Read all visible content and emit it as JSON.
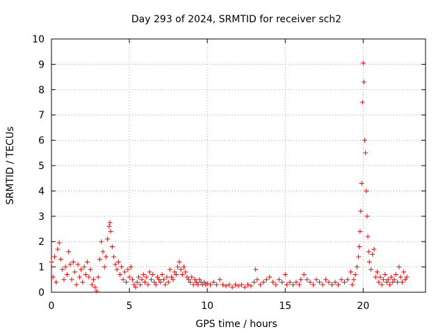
{
  "chart_data": {
    "type": "scatter",
    "title": "Day 293 of 2024, SRMTID for receiver sch2",
    "xlabel": "GPS time / hours",
    "ylabel": "SRMTID / TECUs",
    "xlim": [
      0,
      24
    ],
    "ylim": [
      0,
      10
    ],
    "x_ticks": [
      "0",
      "5",
      "10",
      "15",
      "20"
    ],
    "x_tick_values": [
      0,
      5,
      10,
      15,
      20
    ],
    "y_ticks": [
      "0",
      "1",
      "2",
      "3",
      "4",
      "5",
      "6",
      "7",
      "8",
      "9",
      "10"
    ],
    "y_tick_values": [
      0,
      1,
      2,
      3,
      4,
      5,
      6,
      7,
      8,
      9,
      10
    ],
    "grid": true,
    "marker": "+",
    "series_color": "#ff0000",
    "series": [
      {
        "name": "SRMTID",
        "points": [
          [
            0.0,
            1.2
          ],
          [
            0.1,
            0.6
          ],
          [
            0.2,
            1.4
          ],
          [
            0.3,
            0.4
          ],
          [
            0.4,
            1.7
          ],
          [
            0.5,
            1.95
          ],
          [
            0.6,
            1.3
          ],
          [
            0.7,
            0.9
          ],
          [
            0.8,
            0.5
          ],
          [
            0.9,
            1.0
          ],
          [
            1.0,
            0.7
          ],
          [
            1.1,
            1.6
          ],
          [
            1.2,
            1.1
          ],
          [
            1.3,
            0.5
          ],
          [
            1.4,
            1.2
          ],
          [
            1.5,
            0.8
          ],
          [
            1.6,
            0.3
          ],
          [
            1.7,
            1.1
          ],
          [
            1.8,
            0.6
          ],
          [
            1.9,
            0.9
          ],
          [
            2.0,
            0.4
          ],
          [
            2.1,
            1.0
          ],
          [
            2.2,
            0.7
          ],
          [
            2.3,
            1.2
          ],
          [
            2.4,
            0.6
          ],
          [
            2.5,
            0.9
          ],
          [
            2.6,
            0.3
          ],
          [
            2.7,
            0.5
          ],
          [
            2.8,
            0.2
          ],
          [
            2.9,
            0.05
          ],
          [
            3.0,
            0.6
          ],
          [
            3.1,
            1.3
          ],
          [
            3.2,
            2.0
          ],
          [
            3.3,
            1.6
          ],
          [
            3.4,
            1.0
          ],
          [
            3.5,
            1.4
          ],
          [
            3.6,
            2.1
          ],
          [
            3.7,
            2.6
          ],
          [
            3.75,
            2.75
          ],
          [
            3.8,
            2.4
          ],
          [
            3.9,
            1.8
          ],
          [
            4.0,
            1.4
          ],
          [
            4.1,
            1.1
          ],
          [
            4.2,
            0.9
          ],
          [
            4.3,
            1.2
          ],
          [
            4.4,
            0.7
          ],
          [
            4.5,
            1.0
          ],
          [
            4.6,
            0.5
          ],
          [
            4.7,
            0.8
          ],
          [
            4.8,
            0.4
          ],
          [
            4.9,
            0.9
          ],
          [
            5.0,
            0.6
          ],
          [
            5.1,
            1.0
          ],
          [
            5.2,
            0.5
          ],
          [
            5.3,
            0.3
          ],
          [
            5.4,
            0.2
          ],
          [
            5.5,
            0.4
          ],
          [
            5.6,
            0.6
          ],
          [
            5.7,
            0.3
          ],
          [
            5.8,
            0.5
          ],
          [
            5.9,
            0.7
          ],
          [
            6.0,
            0.4
          ],
          [
            6.1,
            0.6
          ],
          [
            6.2,
            0.3
          ],
          [
            6.3,
            0.8
          ],
          [
            6.4,
            0.5
          ],
          [
            6.5,
            0.7
          ],
          [
            6.6,
            0.4
          ],
          [
            6.7,
            0.3
          ],
          [
            6.8,
            0.6
          ],
          [
            6.9,
            0.5
          ],
          [
            7.0,
            0.4
          ],
          [
            7.1,
            0.7
          ],
          [
            7.2,
            0.5
          ],
          [
            7.3,
            0.3
          ],
          [
            7.4,
            0.6
          ],
          [
            7.5,
            0.4
          ],
          [
            7.6,
            0.9
          ],
          [
            7.7,
            0.6
          ],
          [
            7.8,
            0.5
          ],
          [
            7.9,
            0.8
          ],
          [
            8.0,
            0.7
          ],
          [
            8.1,
            1.0
          ],
          [
            8.2,
            1.2
          ],
          [
            8.3,
            0.9
          ],
          [
            8.4,
            0.7
          ],
          [
            8.5,
            1.0
          ],
          [
            8.6,
            0.8
          ],
          [
            8.7,
            0.6
          ],
          [
            8.8,
            0.5
          ],
          [
            8.9,
            0.4
          ],
          [
            9.0,
            0.6
          ],
          [
            9.1,
            0.3
          ],
          [
            9.2,
            0.5
          ],
          [
            9.3,
            0.4
          ],
          [
            9.4,
            0.3
          ],
          [
            9.5,
            0.5
          ],
          [
            9.6,
            0.4
          ],
          [
            9.7,
            0.3
          ],
          [
            9.8,
            0.4
          ],
          [
            9.9,
            0.3
          ],
          [
            10.0,
            0.35
          ],
          [
            10.2,
            0.3
          ],
          [
            10.4,
            0.4
          ],
          [
            10.6,
            0.3
          ],
          [
            10.8,
            0.5
          ],
          [
            11.0,
            0.3
          ],
          [
            11.2,
            0.25
          ],
          [
            11.4,
            0.3
          ],
          [
            11.6,
            0.2
          ],
          [
            11.8,
            0.3
          ],
          [
            12.0,
            0.25
          ],
          [
            12.2,
            0.3
          ],
          [
            12.4,
            0.2
          ],
          [
            12.6,
            0.3
          ],
          [
            12.8,
            0.25
          ],
          [
            13.0,
            0.4
          ],
          [
            13.1,
            0.9
          ],
          [
            13.2,
            0.5
          ],
          [
            13.4,
            0.3
          ],
          [
            13.6,
            0.4
          ],
          [
            13.8,
            0.5
          ],
          [
            14.0,
            0.6
          ],
          [
            14.2,
            0.4
          ],
          [
            14.4,
            0.3
          ],
          [
            14.6,
            0.5
          ],
          [
            14.8,
            0.4
          ],
          [
            15.0,
            0.7
          ],
          [
            15.1,
            0.3
          ],
          [
            15.3,
            0.4
          ],
          [
            15.5,
            0.3
          ],
          [
            15.7,
            0.4
          ],
          [
            15.9,
            0.3
          ],
          [
            16.0,
            0.5
          ],
          [
            16.2,
            0.7
          ],
          [
            16.4,
            0.5
          ],
          [
            16.6,
            0.4
          ],
          [
            16.8,
            0.3
          ],
          [
            17.0,
            0.5
          ],
          [
            17.2,
            0.4
          ],
          [
            17.4,
            0.3
          ],
          [
            17.6,
            0.5
          ],
          [
            17.8,
            0.4
          ],
          [
            18.0,
            0.3
          ],
          [
            18.2,
            0.4
          ],
          [
            18.4,
            0.3
          ],
          [
            18.6,
            0.5
          ],
          [
            18.8,
            0.4
          ],
          [
            19.0,
            0.5
          ],
          [
            19.2,
            0.8
          ],
          [
            19.3,
            0.3
          ],
          [
            19.4,
            0.5
          ],
          [
            19.5,
            0.7
          ],
          [
            19.6,
            1.0
          ],
          [
            19.7,
            1.4
          ],
          [
            19.75,
            1.8
          ],
          [
            19.8,
            2.4
          ],
          [
            19.85,
            3.2
          ],
          [
            19.9,
            4.3
          ],
          [
            19.95,
            7.5
          ],
          [
            20.0,
            9.05
          ],
          [
            20.05,
            8.3
          ],
          [
            20.1,
            6.0
          ],
          [
            20.15,
            5.5
          ],
          [
            20.2,
            4.0
          ],
          [
            20.25,
            3.0
          ],
          [
            20.3,
            2.2
          ],
          [
            20.35,
            1.6
          ],
          [
            20.4,
            1.2
          ],
          [
            20.5,
            0.9
          ],
          [
            20.6,
            1.5
          ],
          [
            20.7,
            1.7
          ],
          [
            20.8,
            0.6
          ],
          [
            20.9,
            0.8
          ],
          [
            21.0,
            0.4
          ],
          [
            21.1,
            0.6
          ],
          [
            21.2,
            0.3
          ],
          [
            21.3,
            0.5
          ],
          [
            21.4,
            0.7
          ],
          [
            21.5,
            0.4
          ],
          [
            21.6,
            0.5
          ],
          [
            21.7,
            0.3
          ],
          [
            21.8,
            0.6
          ],
          [
            21.9,
            0.4
          ],
          [
            22.0,
            0.5
          ],
          [
            22.1,
            0.7
          ],
          [
            22.2,
            0.4
          ],
          [
            22.3,
            1.0
          ],
          [
            22.4,
            0.6
          ],
          [
            22.5,
            0.4
          ],
          [
            22.6,
            0.8
          ],
          [
            22.7,
            0.5
          ],
          [
            22.8,
            0.6
          ]
        ]
      }
    ]
  }
}
